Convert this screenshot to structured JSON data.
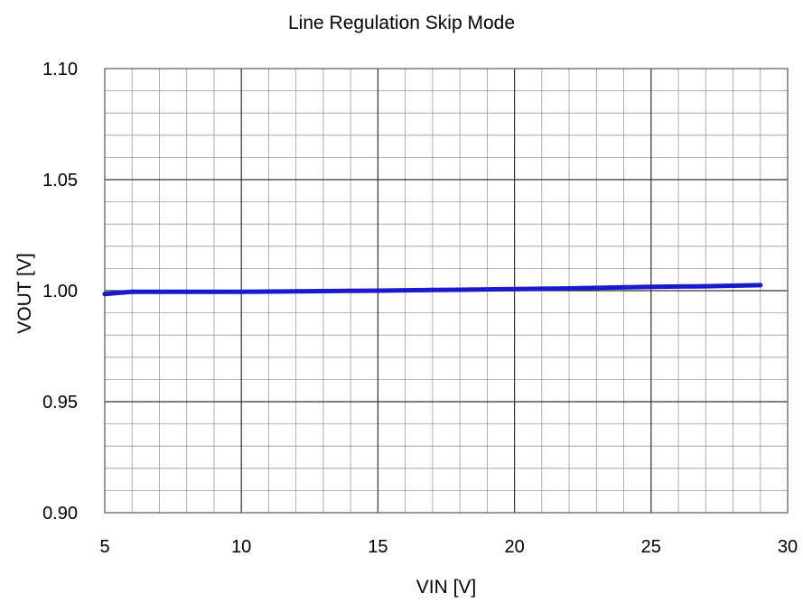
{
  "chart_data": {
    "type": "line",
    "title": "Line Regulation Skip Mode",
    "xlabel": "VIN [V]",
    "ylabel": "VOUT [V]",
    "xlim": [
      5,
      30
    ],
    "ylim": [
      0.9,
      1.1
    ],
    "x_ticks": [
      "5",
      "10",
      "15",
      "20",
      "25",
      "30"
    ],
    "y_ticks": [
      "1.10",
      "1.05",
      "1.00",
      "0.95",
      "0.90"
    ],
    "x_minor_step": 1,
    "y_minor_step": 0.01,
    "grid": true,
    "series": [
      {
        "color": "#1a1acc",
        "x": [
          5,
          6,
          8,
          10,
          12,
          15,
          17,
          20,
          22,
          25,
          27,
          29
        ],
        "y": [
          0.9985,
          0.9995,
          0.9995,
          0.9995,
          0.9997,
          1.0,
          1.0003,
          1.0007,
          1.001,
          1.0017,
          1.002,
          1.0025
        ]
      }
    ]
  }
}
